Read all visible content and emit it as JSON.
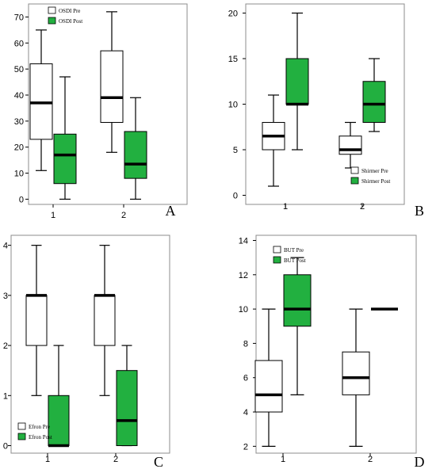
{
  "colors": {
    "pre": "#ffffff",
    "post": "#22b040",
    "median": "#000000",
    "frame": "#8c8c8c"
  },
  "chart_data": [
    {
      "panel": "A",
      "type": "boxplot",
      "categories": [
        "1",
        "2"
      ],
      "ylim": [
        -2,
        75
      ],
      "yticks": [
        0,
        10,
        20,
        30,
        40,
        50,
        60,
        70
      ],
      "legend_position": "top-left",
      "series": [
        {
          "name": "OSDI Pre",
          "boxes": [
            {
              "min": 11,
              "q1": 23,
              "median": 37,
              "q3": 52,
              "max": 65
            },
            {
              "min": 18,
              "q1": 29.5,
              "median": 39,
              "q3": 57,
              "max": 72
            }
          ]
        },
        {
          "name": "OSDI Post",
          "boxes": [
            {
              "min": 0,
              "q1": 6,
              "median": 17,
              "q3": 25,
              "max": 47
            },
            {
              "min": 0,
              "q1": 8,
              "median": 13.5,
              "q3": 26,
              "max": 39
            }
          ]
        }
      ]
    },
    {
      "panel": "B",
      "type": "boxplot",
      "categories": [
        "1",
        "2"
      ],
      "ylim": [
        -1,
        21
      ],
      "yticks": [
        0,
        5,
        10,
        15,
        20
      ],
      "legend_position": "bottom-right",
      "series": [
        {
          "name": "Shirmer Pre",
          "boxes": [
            {
              "min": 1,
              "q1": 5,
              "median": 6.5,
              "q3": 8,
              "max": 11
            },
            {
              "min": 3,
              "q1": 4.5,
              "median": 5,
              "q3": 6.5,
              "max": 8
            }
          ]
        },
        {
          "name": "Shirmer Post",
          "boxes": [
            {
              "min": 5,
              "q1": 10,
              "median": 10,
              "q3": 15,
              "max": 20
            },
            {
              "min": 7,
              "q1": 8,
              "median": 10,
              "q3": 12.5,
              "max": 15
            }
          ]
        }
      ]
    },
    {
      "panel": "C",
      "type": "boxplot",
      "categories": [
        "1",
        "2"
      ],
      "ylim": [
        -0.15,
        4.2
      ],
      "yticks": [
        0,
        1,
        2,
        3,
        4
      ],
      "legend_position": "bottom-left",
      "series": [
        {
          "name": "Efron Pre",
          "boxes": [
            {
              "min": 1,
              "q1": 2,
              "median": 3,
              "q3": 3,
              "max": 4
            },
            {
              "min": 1,
              "q1": 2,
              "median": 3,
              "q3": 3,
              "max": 4
            }
          ]
        },
        {
          "name": "Efron Post",
          "boxes": [
            {
              "min": 0,
              "q1": 0,
              "median": 0,
              "q3": 1,
              "max": 2
            },
            {
              "min": 0,
              "q1": 0,
              "median": 0.5,
              "q3": 1.5,
              "max": 2
            }
          ]
        }
      ]
    },
    {
      "panel": "D",
      "type": "boxplot",
      "categories": [
        "1",
        "2"
      ],
      "ylim": [
        1.6,
        14.3
      ],
      "yticks": [
        2,
        4,
        6,
        8,
        10,
        12,
        14
      ],
      "legend_position": "top-left",
      "series": [
        {
          "name": "BUT Pre",
          "boxes": [
            {
              "min": 2,
              "q1": 4,
              "median": 5,
              "q3": 7,
              "max": 10
            },
            {
              "min": 2,
              "q1": 5,
              "median": 6,
              "q3": 7.5,
              "max": 10
            }
          ]
        },
        {
          "name": "BUT Post",
          "boxes": [
            {
              "min": 5,
              "q1": 9,
              "median": 10,
              "q3": 12,
              "max": 13
            },
            {
              "min": 10,
              "q1": 10,
              "median": 10,
              "q3": 10,
              "max": 10
            }
          ]
        }
      ]
    }
  ]
}
